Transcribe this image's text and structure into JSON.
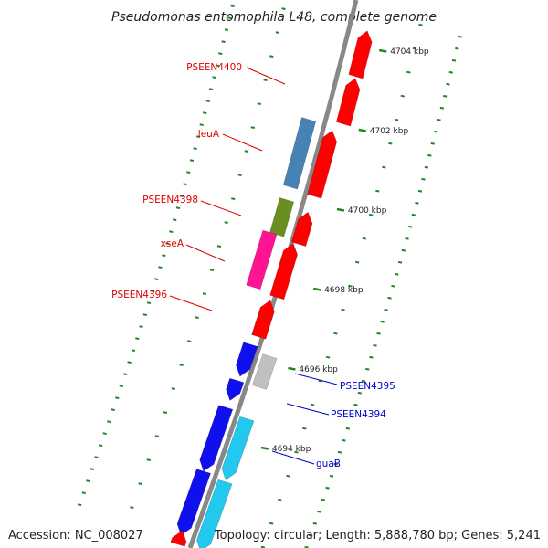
{
  "title": "Pseudomonas entomophila L48, complete genome",
  "footer": {
    "accession": "Accession: NC_008027",
    "summary": "Topology: circular; Length: 5,888,780 bp; Genes: 5,241"
  },
  "ticks": [
    {
      "kbp": 4694,
      "label": "4694 kbp"
    },
    {
      "kbp": 4696,
      "label": "4696 kbp"
    },
    {
      "kbp": 4698,
      "label": "4698 kbp"
    },
    {
      "kbp": 4700,
      "label": "4700 kbp"
    },
    {
      "kbp": 4702,
      "label": "4702 kbp"
    },
    {
      "kbp": 4704,
      "label": "4704 kbp"
    }
  ],
  "gene_labels": [
    {
      "text": "PSEEN4400",
      "color": "#dd0000"
    },
    {
      "text": "leuA",
      "color": "#dd0000"
    },
    {
      "text": "PSEEN4398",
      "color": "#dd0000"
    },
    {
      "text": "xseA",
      "color": "#dd0000"
    },
    {
      "text": "PSEEN4396",
      "color": "#dd0000"
    },
    {
      "text": "PSEEN4395",
      "color": "#0000cc"
    },
    {
      "text": "PSEEN4394",
      "color": "#0000cc"
    },
    {
      "text": "guaB",
      "color": "#0000cc"
    }
  ],
  "colors": {
    "backbone": "#888888",
    "tick_mark": "#228822",
    "red_gene": "#ff0000",
    "blue_gene": "#1010ee",
    "cyan_gene": "#22c8ee",
    "steelblue_gene": "#4682b4",
    "olive_gene": "#6b8e23",
    "magenta_gene": "#ff1493",
    "gray_gene": "#c0c0c0"
  }
}
